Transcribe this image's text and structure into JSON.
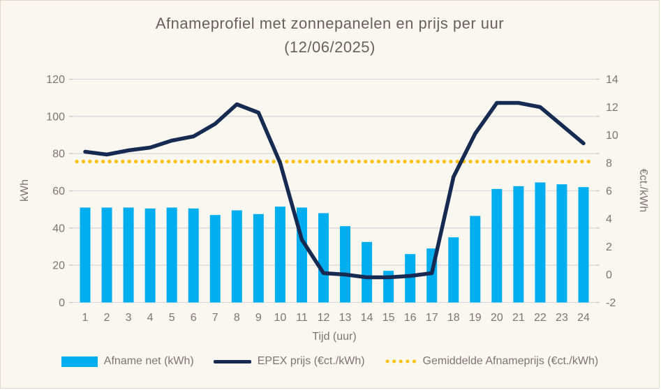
{
  "title": {
    "line1": "Afnameprofiel met zonnepanelen en prijs per uur",
    "line2": "(12/06/2025)"
  },
  "colors": {
    "bar": "#00AEEF",
    "line": "#172A52",
    "avg": "#FFC000",
    "gridline": "#D9D9D9",
    "tick_mark": "#C9C5BD",
    "axis_text": "#7A766F",
    "title_text": "#66615C",
    "background": "#FAF7F1",
    "border": "#DFD9CB"
  },
  "chart_data": {
    "type": "combo",
    "subtype": "bar+line",
    "title": "Afnameprofiel met zonnepanelen en prijs per uur (12/06/2025)",
    "categories": [
      "1",
      "2",
      "3",
      "4",
      "5",
      "6",
      "7",
      "8",
      "9",
      "10",
      "11",
      "12",
      "13",
      "14",
      "15",
      "16",
      "17",
      "18",
      "19",
      "20",
      "21",
      "22",
      "23",
      "24"
    ],
    "x_label": "Tijd (uur)",
    "left_axis": {
      "label": "kWh",
      "min": 0,
      "max": 120,
      "step": 20
    },
    "right_axis": {
      "label": "€ct./kWh",
      "min": -2,
      "max": 14,
      "step": 2
    },
    "grid": "horizontal",
    "legend_position": "bottom",
    "series": [
      {
        "name": "Afname net (kWh)",
        "type": "bar",
        "axis": "left",
        "values": [
          51,
          51,
          51,
          50.5,
          51,
          50.5,
          47,
          49.5,
          47.5,
          51.5,
          51,
          48,
          41,
          32.5,
          17,
          26,
          29,
          35,
          46.5,
          61,
          62.5,
          64.5,
          63.5,
          62
        ]
      },
      {
        "name": "EPEX prijs (€ct./kWh)",
        "type": "line",
        "axis": "right",
        "values": [
          8.8,
          8.6,
          8.9,
          9.1,
          9.6,
          9.9,
          10.8,
          12.2,
          11.6,
          8.0,
          2.5,
          0.1,
          0.0,
          -0.2,
          -0.2,
          -0.1,
          0.1,
          7.0,
          10.1,
          12.3,
          12.3,
          12.0,
          10.7,
          9.4
        ]
      },
      {
        "name": "Gemiddelde Afnameprijs (€ct./kWh)",
        "type": "constant-line",
        "axis": "right",
        "value": 8.1
      }
    ]
  }
}
